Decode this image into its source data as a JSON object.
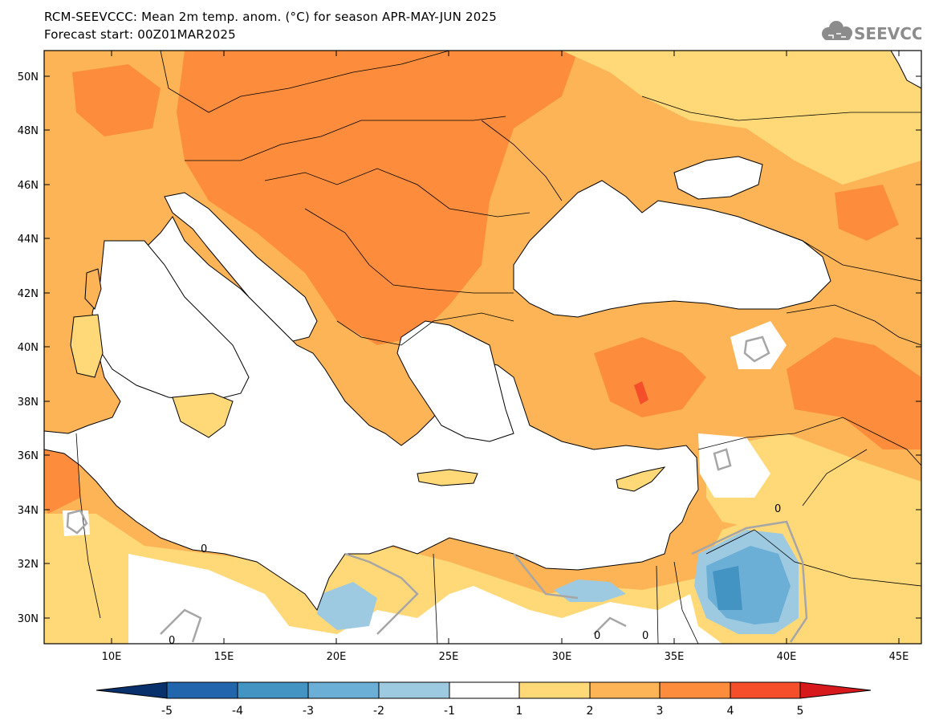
{
  "header": {
    "title": "RCM-SEEVCCC: Mean 2m temp. anom. (°C) for season APR-MAY-JUN 2025",
    "subtitle": "Forecast start: 00Z01MAR2025",
    "logo_text": "SEEVCCC"
  },
  "axes": {
    "lat_labels": [
      "50N",
      "48N",
      "46N",
      "44N",
      "42N",
      "40N",
      "38N",
      "36N",
      "34N",
      "32N",
      "30N"
    ],
    "lon_labels": [
      "10E",
      "15E",
      "20E",
      "25E",
      "30E",
      "35E",
      "40E",
      "45E"
    ]
  },
  "colorbar": {
    "labels": [
      "-5",
      "-4",
      "-3",
      "-2",
      "-1",
      "1",
      "2",
      "3",
      "4",
      "5"
    ],
    "colors": [
      "#08306b",
      "#2166ac",
      "#4393c3",
      "#6baed6",
      "#9ecae1",
      "#ffffff",
      "#ffd978",
      "#fdb456",
      "#fd8d3c",
      "#f44e2a",
      "#d7191c"
    ]
  },
  "contour_labels": [
    "0",
    "0",
    "0",
    "0",
    "0"
  ],
  "colors": {
    "sea": "#ffffff",
    "coast": "#000000",
    "contour": "#a6a6a6"
  }
}
